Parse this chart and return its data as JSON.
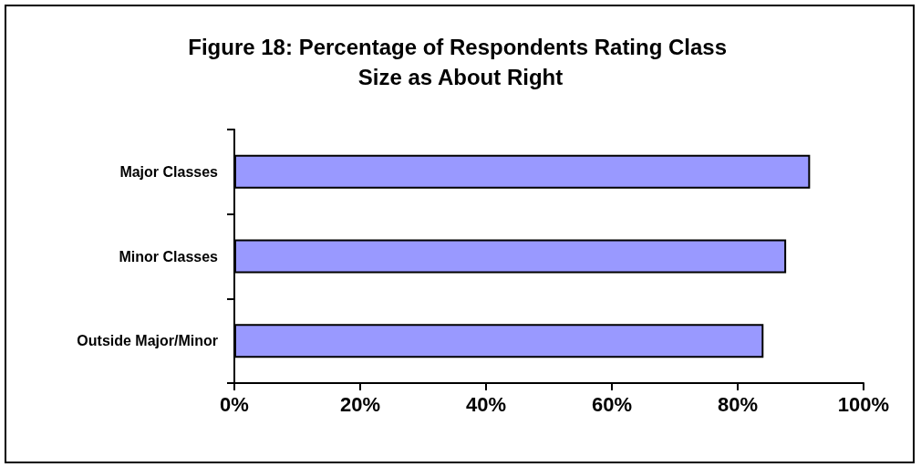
{
  "chart_data": {
    "type": "bar",
    "orientation": "horizontal",
    "title": "Figure 18: Percentage of Respondents Rating Class Size as About Right",
    "categories": [
      "Major Classes",
      "Minor Classes",
      "Outside Major/Minor"
    ],
    "values": [
      91.5,
      87.7,
      84.1
    ],
    "color": "#9999ff",
    "xlim": [
      0,
      100
    ],
    "xticks": [
      {
        "value": 0,
        "label": "0%"
      },
      {
        "value": 20,
        "label": "20%"
      },
      {
        "value": 40,
        "label": "40%"
      },
      {
        "value": 60,
        "label": "60%"
      },
      {
        "value": 80,
        "label": "80%"
      },
      {
        "value": 100,
        "label": "100%"
      }
    ],
    "grid": false
  }
}
